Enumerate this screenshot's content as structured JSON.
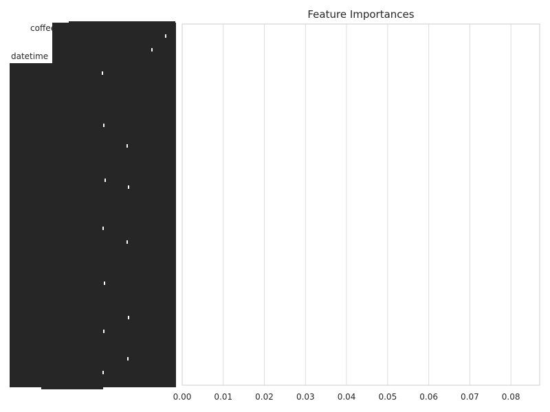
{
  "chart_data": {
    "type": "bar",
    "orientation": "horizontal",
    "title": "Feature Importances",
    "xlabel": "",
    "ylabel": "",
    "xlim": [
      0,
      0.087
    ],
    "x_ticks": [
      "0.00",
      "0.01",
      "0.02",
      "0.03",
      "0.04",
      "0.05",
      "0.06",
      "0.07",
      "0.08"
    ],
    "x_tick_values": [
      0,
      0.01,
      0.02,
      0.03,
      0.04,
      0.05,
      0.06,
      0.07,
      0.08
    ],
    "grid": true,
    "legible_category_labels": [
      "coffee",
      "datetime"
    ],
    "categories": [],
    "values": [],
    "colors": {
      "grid": "#dddddd",
      "text": "#262626",
      "spine": "#cccccc",
      "label_overlap": "#262626"
    }
  }
}
